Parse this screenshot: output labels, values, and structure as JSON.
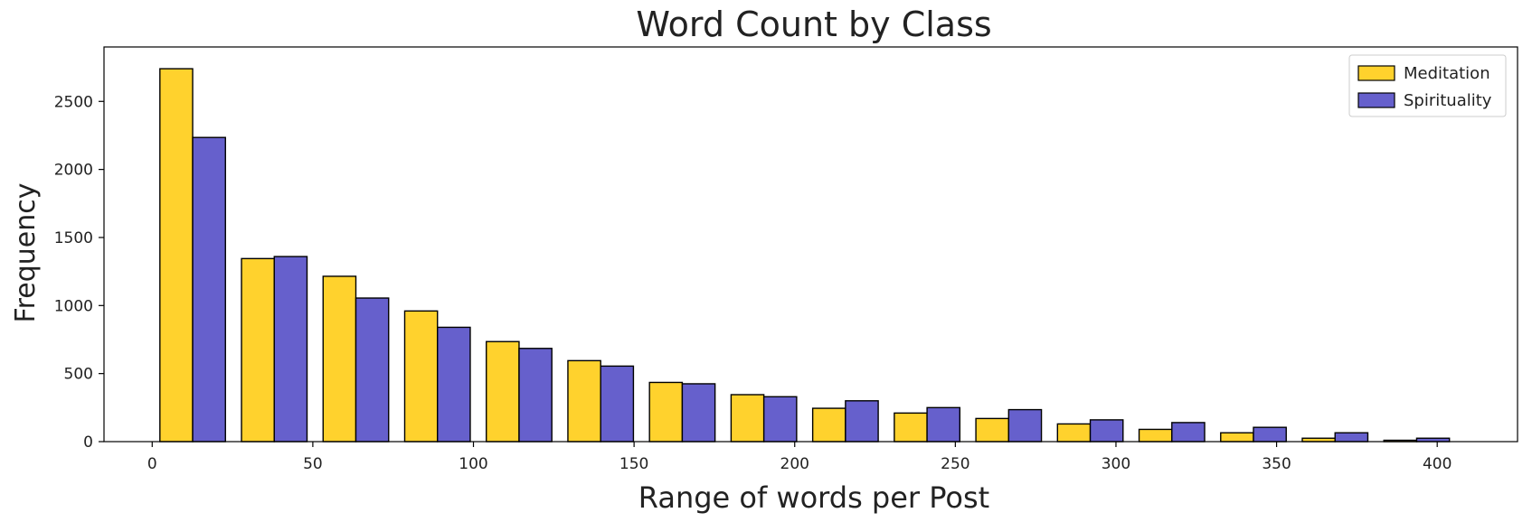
{
  "chart_data": {
    "type": "bar",
    "title": "Word Count by Class",
    "xlabel": "Range of words per Post",
    "ylabel": "Frequency",
    "xlim": [
      -15,
      425
    ],
    "ylim": [
      0,
      2900
    ],
    "x_ticks": [
      0,
      50,
      100,
      150,
      200,
      250,
      300,
      350,
      400
    ],
    "y_ticks": [
      0,
      500,
      1000,
      1500,
      2000,
      2500
    ],
    "bin_starts": [
      2.4,
      27.8,
      53.2,
      78.6,
      104.0,
      129.4,
      154.8,
      180.2,
      205.6,
      231.0,
      256.4,
      281.8,
      307.2,
      332.6,
      358.0,
      383.4
    ],
    "bar_width": 10.2,
    "series": [
      {
        "name": "Meditation",
        "color": "#FFD22D",
        "values": [
          2740,
          1345,
          1215,
          960,
          735,
          595,
          435,
          345,
          245,
          210,
          170,
          130,
          90,
          65,
          25,
          10
        ]
      },
      {
        "name": "Spirituality",
        "color": "#6660CC",
        "values": [
          2235,
          1360,
          1055,
          840,
          685,
          555,
          425,
          330,
          300,
          250,
          235,
          160,
          140,
          105,
          65,
          25
        ]
      }
    ],
    "legend_position": "top-right",
    "grid": false
  }
}
